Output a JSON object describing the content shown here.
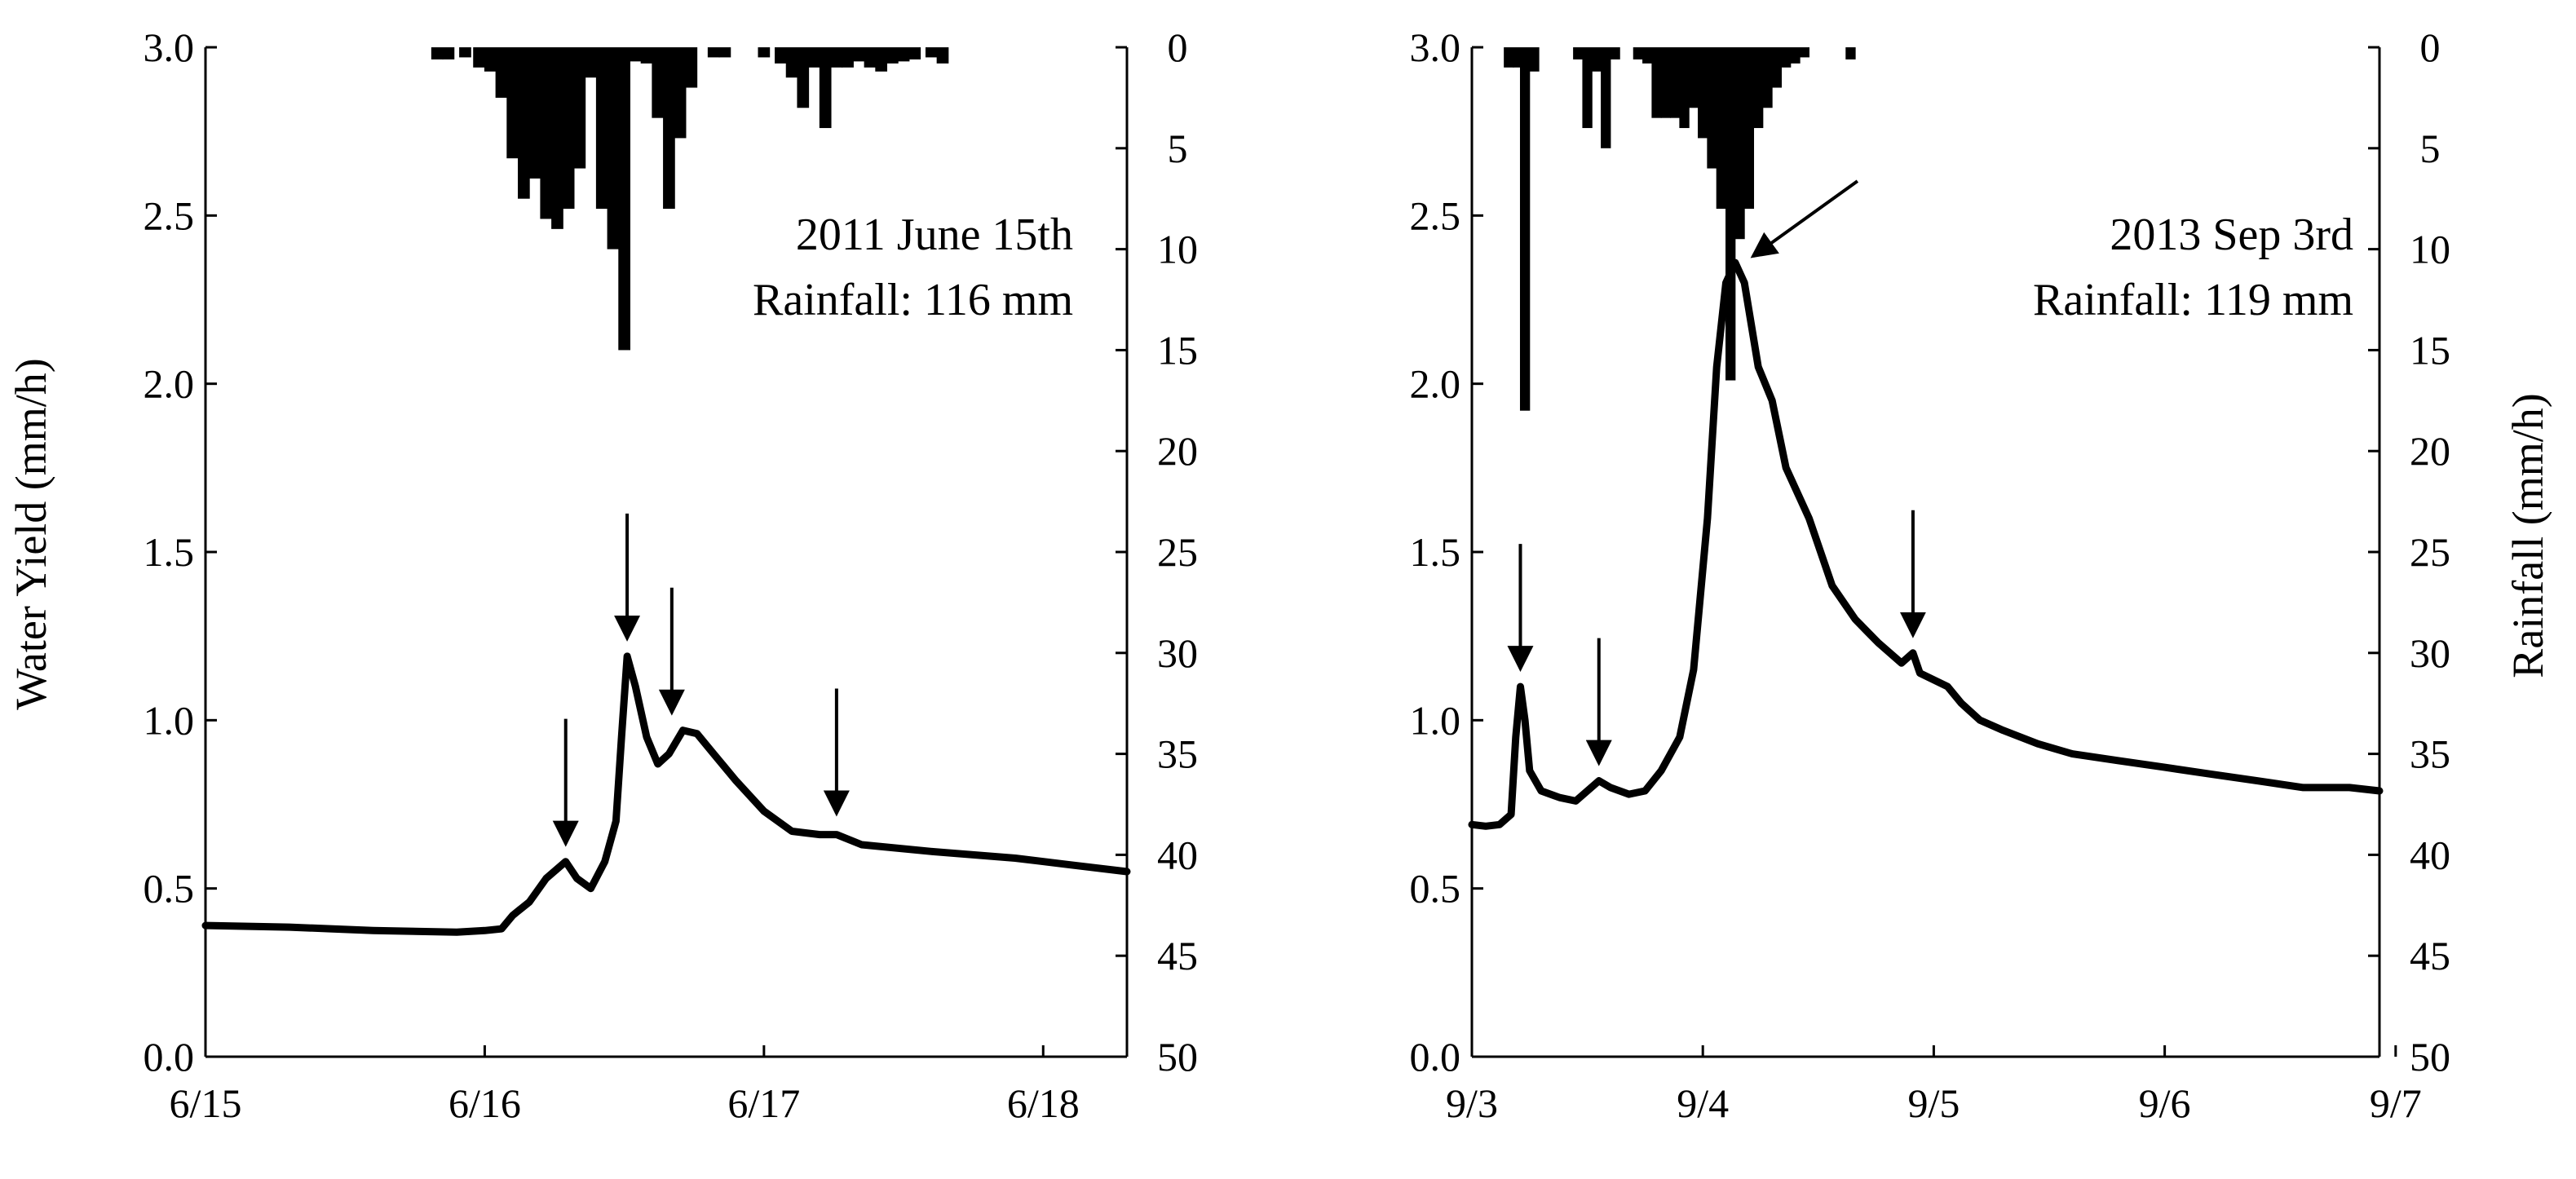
{
  "colors": {
    "line": "#000000",
    "bars": "#000000",
    "axes": "#000000",
    "background": "#ffffff"
  },
  "axis_labels": {
    "left": "Water Yield (mm/h)",
    "right": "Rainfall (mm/h)"
  },
  "chart_data": [
    {
      "type": "line+bar",
      "annotation": {
        "line1": "2011 June 15th",
        "line2": "Rainfall:  116 mm"
      },
      "x_ticks": [
        "6/15",
        "6/16",
        "6/17",
        "6/18"
      ],
      "x_range_days": [
        0,
        3.3
      ],
      "left_axis": {
        "ylim": [
          0,
          3.0
        ],
        "ticks": [
          "0.0",
          "0.5",
          "1.0",
          "1.5",
          "2.0",
          "2.5",
          "3.0"
        ]
      },
      "right_axis": {
        "ylim": [
          0,
          50
        ],
        "inverted": true,
        "ticks": [
          "0",
          "5",
          "10",
          "15",
          "20",
          "25",
          "30",
          "35",
          "40",
          "45",
          "50"
        ]
      },
      "water_yield": [
        [
          0,
          0.39
        ],
        [
          0.3,
          0.385
        ],
        [
          0.6,
          0.375
        ],
        [
          0.9,
          0.37
        ],
        [
          1.0,
          0.375
        ],
        [
          1.06,
          0.38
        ],
        [
          1.1,
          0.42
        ],
        [
          1.16,
          0.46
        ],
        [
          1.22,
          0.53
        ],
        [
          1.29,
          0.58
        ],
        [
          1.33,
          0.53
        ],
        [
          1.38,
          0.5
        ],
        [
          1.43,
          0.58
        ],
        [
          1.47,
          0.7
        ],
        [
          1.49,
          0.95
        ],
        [
          1.51,
          1.19
        ],
        [
          1.54,
          1.1
        ],
        [
          1.58,
          0.95
        ],
        [
          1.62,
          0.87
        ],
        [
          1.66,
          0.9
        ],
        [
          1.71,
          0.97
        ],
        [
          1.76,
          0.96
        ],
        [
          1.82,
          0.9
        ],
        [
          1.9,
          0.82
        ],
        [
          2.0,
          0.73
        ],
        [
          2.1,
          0.67
        ],
        [
          2.2,
          0.66
        ],
        [
          2.26,
          0.66
        ],
        [
          2.35,
          0.63
        ],
        [
          2.6,
          0.61
        ],
        [
          2.9,
          0.59
        ],
        [
          3.1,
          0.57
        ],
        [
          3.3,
          0.55
        ]
      ],
      "rainfall": [
        [
          0.83,
          0.6
        ],
        [
          0.87,
          0.6
        ],
        [
          0.93,
          0.5
        ],
        [
          0.98,
          1.0
        ],
        [
          1.02,
          1.2
        ],
        [
          1.06,
          2.5
        ],
        [
          1.1,
          5.5
        ],
        [
          1.14,
          7.5
        ],
        [
          1.18,
          6.5
        ],
        [
          1.22,
          8.5
        ],
        [
          1.26,
          9.0
        ],
        [
          1.3,
          8.0
        ],
        [
          1.34,
          6.0
        ],
        [
          1.38,
          1.5
        ],
        [
          1.42,
          8.0
        ],
        [
          1.46,
          10.0
        ],
        [
          1.5,
          15.0
        ],
        [
          1.54,
          0.7
        ],
        [
          1.58,
          0.8
        ],
        [
          1.62,
          3.5
        ],
        [
          1.66,
          8.0
        ],
        [
          1.7,
          4.5
        ],
        [
          1.74,
          2.0
        ],
        [
          1.82,
          0.5
        ],
        [
          1.86,
          0.5
        ],
        [
          2.0,
          0.5
        ],
        [
          2.06,
          0.8
        ],
        [
          2.1,
          1.5
        ],
        [
          2.14,
          3.0
        ],
        [
          2.18,
          1.0
        ],
        [
          2.22,
          4.0
        ],
        [
          2.26,
          1.0
        ],
        [
          2.3,
          1.0
        ],
        [
          2.34,
          0.7
        ],
        [
          2.38,
          1.0
        ],
        [
          2.42,
          1.2
        ],
        [
          2.46,
          0.8
        ],
        [
          2.5,
          0.7
        ],
        [
          2.54,
          0.6
        ],
        [
          2.6,
          0.5
        ],
        [
          2.64,
          0.8
        ]
      ],
      "peak_arrows": [
        [
          1.29,
          0.58
        ],
        [
          1.51,
          1.19
        ],
        [
          1.67,
          0.97
        ],
        [
          2.26,
          0.67
        ]
      ]
    },
    {
      "type": "line+bar",
      "annotation": {
        "line1": "2013 Sep 3rd",
        "line2": "Rainfall:  119 mm"
      },
      "x_ticks": [
        "9/3",
        "9/4",
        "9/5",
        "9/6",
        "9/7"
      ],
      "x_range_days": [
        0,
        3.93
      ],
      "left_axis": {
        "ylim": [
          0,
          3.0
        ],
        "ticks": [
          "0.0",
          "0.5",
          "1.0",
          "1.5",
          "2.0",
          "2.5",
          "3.0"
        ]
      },
      "right_axis": {
        "ylim": [
          0,
          50
        ],
        "inverted": true,
        "ticks": [
          "0",
          "5",
          "10",
          "15",
          "20",
          "25",
          "30",
          "35",
          "40",
          "45",
          "50"
        ]
      },
      "water_yield": [
        [
          0,
          0.69
        ],
        [
          0.06,
          0.685
        ],
        [
          0.12,
          0.69
        ],
        [
          0.17,
          0.72
        ],
        [
          0.19,
          0.95
        ],
        [
          0.21,
          1.1
        ],
        [
          0.23,
          1.0
        ],
        [
          0.25,
          0.85
        ],
        [
          0.3,
          0.79
        ],
        [
          0.38,
          0.77
        ],
        [
          0.45,
          0.76
        ],
        [
          0.5,
          0.79
        ],
        [
          0.55,
          0.82
        ],
        [
          0.6,
          0.8
        ],
        [
          0.68,
          0.78
        ],
        [
          0.75,
          0.79
        ],
        [
          0.82,
          0.85
        ],
        [
          0.9,
          0.95
        ],
        [
          0.96,
          1.15
        ],
        [
          1.02,
          1.6
        ],
        [
          1.06,
          2.05
        ],
        [
          1.1,
          2.3
        ],
        [
          1.14,
          2.36
        ],
        [
          1.18,
          2.3
        ],
        [
          1.24,
          2.05
        ],
        [
          1.3,
          1.95
        ],
        [
          1.36,
          1.75
        ],
        [
          1.46,
          1.6
        ],
        [
          1.56,
          1.4
        ],
        [
          1.66,
          1.3
        ],
        [
          1.76,
          1.23
        ],
        [
          1.86,
          1.17
        ],
        [
          1.91,
          1.2
        ],
        [
          1.94,
          1.14
        ],
        [
          2.0,
          1.12
        ],
        [
          2.06,
          1.1
        ],
        [
          2.12,
          1.05
        ],
        [
          2.2,
          1.0
        ],
        [
          2.3,
          0.97
        ],
        [
          2.45,
          0.93
        ],
        [
          2.6,
          0.9
        ],
        [
          2.8,
          0.88
        ],
        [
          3.0,
          0.86
        ],
        [
          3.2,
          0.84
        ],
        [
          3.4,
          0.82
        ],
        [
          3.6,
          0.8
        ],
        [
          3.8,
          0.8
        ],
        [
          3.93,
          0.79
        ]
      ],
      "rainfall": [
        [
          0.16,
          1.0
        ],
        [
          0.2,
          1.0
        ],
        [
          0.23,
          18.0
        ],
        [
          0.27,
          1.2
        ],
        [
          0.46,
          0.6
        ],
        [
          0.5,
          4.0
        ],
        [
          0.54,
          1.2
        ],
        [
          0.58,
          5.0
        ],
        [
          0.62,
          0.6
        ],
        [
          0.72,
          0.6
        ],
        [
          0.76,
          0.8
        ],
        [
          0.8,
          3.5
        ],
        [
          0.84,
          3.5
        ],
        [
          0.88,
          3.5
        ],
        [
          0.92,
          4.0
        ],
        [
          0.96,
          3.0
        ],
        [
          1.0,
          4.5
        ],
        [
          1.04,
          6.0
        ],
        [
          1.08,
          8.0
        ],
        [
          1.12,
          16.5
        ],
        [
          1.16,
          9.5
        ],
        [
          1.2,
          8.0
        ],
        [
          1.24,
          4.0
        ],
        [
          1.28,
          3.0
        ],
        [
          1.32,
          2.0
        ],
        [
          1.36,
          1.0
        ],
        [
          1.4,
          0.8
        ],
        [
          1.44,
          0.5
        ],
        [
          1.64,
          0.6
        ]
      ],
      "peak_arrows": [
        [
          0.21,
          1.1
        ],
        [
          0.55,
          0.82
        ],
        [
          1.14,
          2.36
        ],
        [
          1.91,
          1.2
        ]
      ]
    }
  ]
}
